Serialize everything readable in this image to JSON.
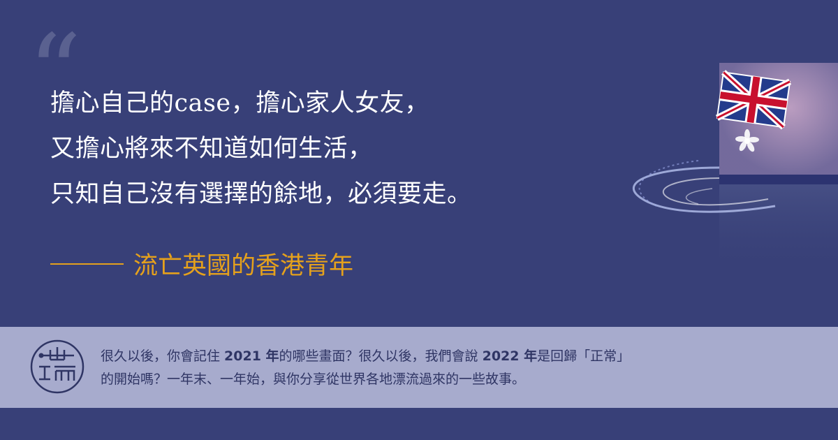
{
  "quote": {
    "open_mark": "“",
    "lines": [
      "擔心自己的case，擔心家人女友，",
      "又擔心將來不知道如何生活，",
      "只知自己沒有選擇的餘地，必須要走。"
    ]
  },
  "attribution": {
    "text": "流亡英國的香港青年"
  },
  "band": {
    "line1": [
      {
        "t": "很久以後，你會記住 ",
        "b": false
      },
      {
        "t": "2021 年",
        "b": true
      },
      {
        "t": "的哪些畫面？很久以後，我們會說 ",
        "b": false
      },
      {
        "t": "2022 年",
        "b": true
      },
      {
        "t": "是回歸「正常」",
        "b": false
      }
    ],
    "line2": "的開始嗎？一年末、一年始，與你分享從世界各地漂流過來的一些故事。"
  },
  "colors": {
    "background": "#384078",
    "accent": "#e5a11c",
    "band": "#a7abcd",
    "band_text": "#2f3564"
  },
  "icons": [
    "quote-mark-icon",
    "logo-icon",
    "flag-illustration"
  ]
}
